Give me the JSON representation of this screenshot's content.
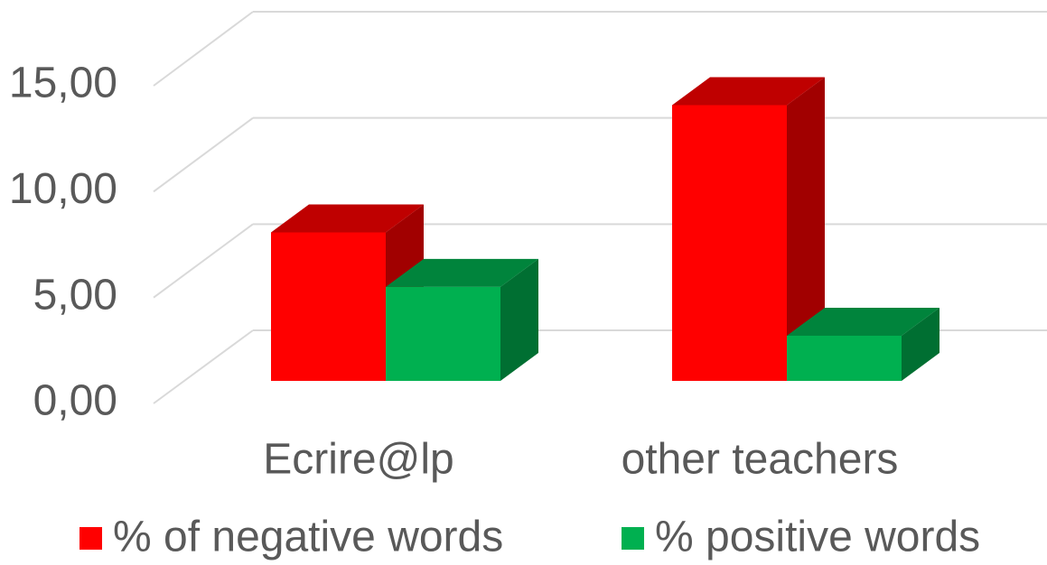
{
  "chart_data": {
    "type": "bar3d",
    "categories": [
      "Ecrire@lp",
      "other teachers"
    ],
    "series": [
      {
        "name": "% of negative words",
        "color": "#ff0000",
        "values": [
          7.0,
          13.0
        ]
      },
      {
        "name": "% positive words",
        "color": "#00b050",
        "values": [
          4.43,
          2.13
        ]
      }
    ],
    "ylim": [
      0,
      15
    ],
    "yticks": [
      {
        "value": 0,
        "label": "0,00"
      },
      {
        "value": 5,
        "label": "5,00"
      },
      {
        "value": 10,
        "label": "10,00"
      },
      {
        "value": 15,
        "label": "15,00"
      }
    ],
    "grid": true,
    "legend": "bottom"
  }
}
